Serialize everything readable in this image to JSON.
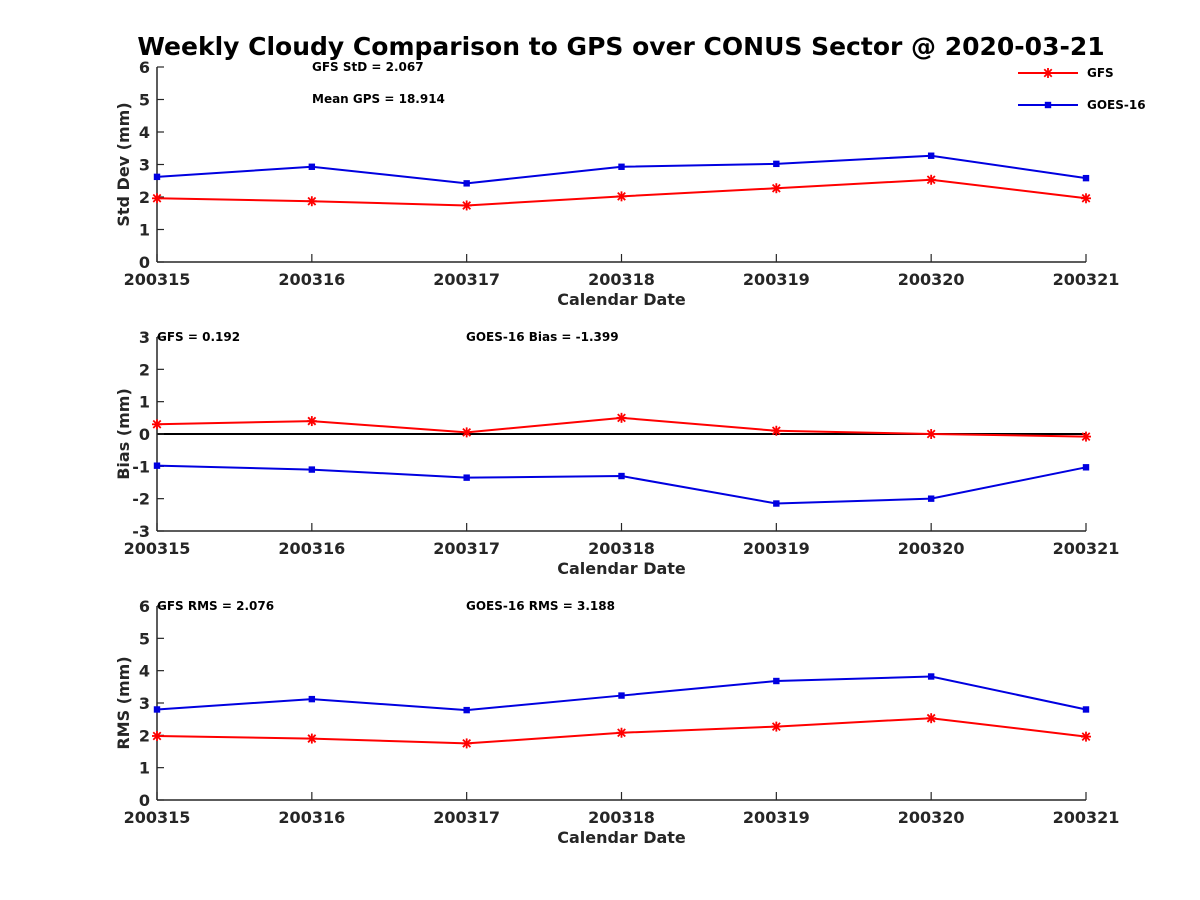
{
  "title": "Weekly Cloudy Comparison to GPS over CONUS Sector @ 2020-03-21",
  "colors": {
    "GFS": "#ff0000",
    "GOES-16": "#0000e0",
    "axis": "#262626",
    "zero_line": "#000000"
  },
  "legend": {
    "placement": "top-right",
    "entries": [
      "GFS",
      "GOES-16"
    ]
  },
  "chart_data": [
    {
      "type": "line",
      "categories": [
        "200315",
        "200316",
        "200317",
        "200318",
        "200319",
        "200320",
        "200321"
      ],
      "xlabel": "Calendar Date",
      "ylabel": "Std Dev (mm)",
      "ylim": [
        0,
        6
      ],
      "yticks": [
        "0",
        "1",
        "2",
        "3",
        "4",
        "5",
        "6"
      ],
      "zero_line": false,
      "annotations": [
        "GFS StD = 2.067",
        "Mean GPS = 18.914"
      ],
      "series": [
        {
          "name": "GFS",
          "marker": "asterisk",
          "values": [
            1.96,
            1.87,
            1.74,
            2.02,
            2.27,
            2.53,
            1.96
          ]
        },
        {
          "name": "GOES-16",
          "marker": "square",
          "values": [
            2.62,
            2.93,
            2.42,
            2.93,
            3.02,
            3.27,
            2.58
          ]
        }
      ]
    },
    {
      "type": "line",
      "categories": [
        "200315",
        "200316",
        "200317",
        "200318",
        "200319",
        "200320",
        "200321"
      ],
      "xlabel": "Calendar Date",
      "ylabel": "Bias (mm)",
      "ylim": [
        -3,
        3
      ],
      "yticks": [
        "-3",
        "-2",
        "-1",
        "0",
        "1",
        "2",
        "3"
      ],
      "zero_line": true,
      "annotations": [
        "GFS = 0.192",
        "GOES-16 Bias  = -1.399"
      ],
      "series": [
        {
          "name": "GFS",
          "marker": "asterisk",
          "values": [
            0.3,
            0.4,
            0.05,
            0.5,
            0.1,
            0.0,
            -0.08
          ]
        },
        {
          "name": "GOES-16",
          "marker": "square",
          "values": [
            -0.98,
            -1.1,
            -1.35,
            -1.3,
            -2.15,
            -2.0,
            -1.03
          ]
        }
      ]
    },
    {
      "type": "line",
      "categories": [
        "200315",
        "200316",
        "200317",
        "200318",
        "200319",
        "200320",
        "200321"
      ],
      "xlabel": "Calendar Date",
      "ylabel": "RMS (mm)",
      "ylim": [
        0,
        6
      ],
      "yticks": [
        "0",
        "1",
        "2",
        "3",
        "4",
        "5",
        "6"
      ],
      "zero_line": false,
      "annotations": [
        "GFS RMS = 2.076",
        "GOES-16 RMS = 3.188"
      ],
      "series": [
        {
          "name": "GFS",
          "marker": "asterisk",
          "values": [
            1.98,
            1.9,
            1.75,
            2.08,
            2.27,
            2.53,
            1.96
          ]
        },
        {
          "name": "GOES-16",
          "marker": "square",
          "values": [
            2.8,
            3.12,
            2.78,
            3.23,
            3.68,
            3.82,
            2.8
          ]
        }
      ]
    }
  ]
}
